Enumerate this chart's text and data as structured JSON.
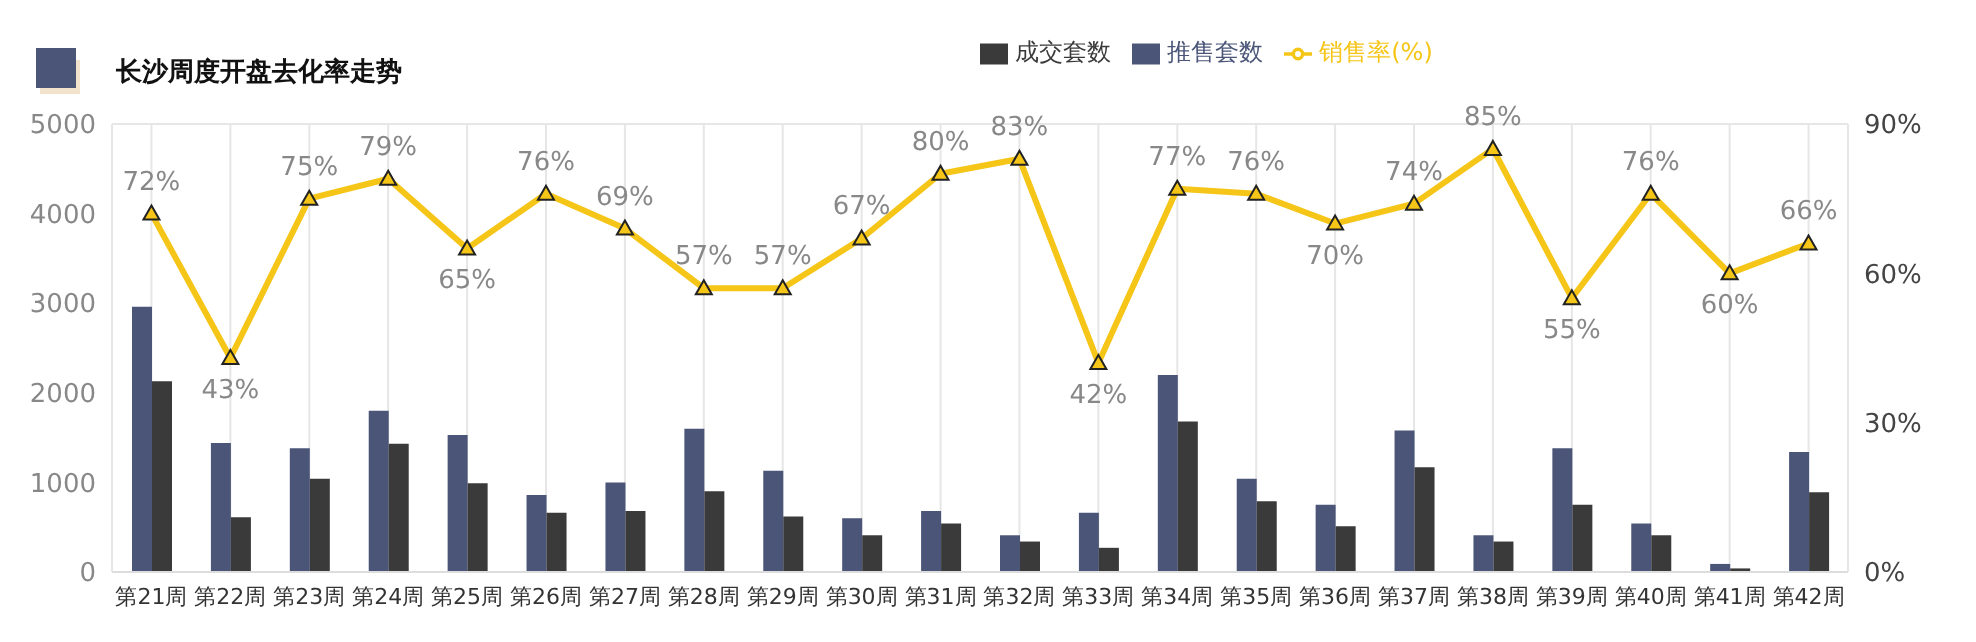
{
  "chart_data": {
    "type": "bar",
    "title": "长沙周度开盘去化率走势",
    "categories": [
      "第21周",
      "第22周",
      "第23周",
      "第24周",
      "第25周",
      "第26周",
      "第27周",
      "第28周",
      "第29周",
      "第30周",
      "第31周",
      "第32周",
      "第33周",
      "第34周",
      "第35周",
      "第36周",
      "第37周",
      "第38周",
      "第39周",
      "第40周",
      "第41周",
      "第42周"
    ],
    "series": [
      {
        "name": "推售套数",
        "color": "#4a5578",
        "values": [
          2960,
          1440,
          1380,
          1800,
          1530,
          860,
          1000,
          1600,
          1130,
          600,
          680,
          410,
          660,
          2200,
          1040,
          750,
          1580,
          410,
          1380,
          540,
          90,
          1340
        ]
      },
      {
        "name": "成交套数",
        "color": "#3a3a3a",
        "values": [
          2130,
          610,
          1040,
          1430,
          990,
          660,
          680,
          900,
          620,
          410,
          540,
          340,
          270,
          1680,
          790,
          510,
          1170,
          340,
          750,
          410,
          40,
          890
        ]
      },
      {
        "name": "销售率(%)",
        "type": "line",
        "axis": "y2",
        "color": "#f5c518",
        "marker": "triangle",
        "values": [
          72,
          43,
          75,
          79,
          65,
          76,
          69,
          57,
          57,
          67,
          80,
          83,
          42,
          77,
          76,
          70,
          74,
          85,
          55,
          76,
          60,
          66
        ],
        "value_labels": [
          "72%",
          "43%",
          "75%",
          "79%",
          "65%",
          "76%",
          "69%",
          "57%",
          "57%",
          "67%",
          "80%",
          "83%",
          "42%",
          "77%",
          "76%",
          "70%",
          "74%",
          "85%",
          "55%",
          "76%",
          "60%",
          "66%"
        ]
      }
    ],
    "ylim": [
      0,
      5000
    ],
    "yticks": [
      0,
      1000,
      2000,
      3000,
      4000,
      5000
    ],
    "y2lim": [
      0,
      90
    ],
    "y2ticks": [
      {
        "value": 0,
        "label": "0%"
      },
      {
        "value": 30,
        "label": "30%"
      },
      {
        "value": 60,
        "label": "60%"
      },
      {
        "value": 90,
        "label": "90%"
      }
    ],
    "grid": true,
    "legend": "top"
  }
}
